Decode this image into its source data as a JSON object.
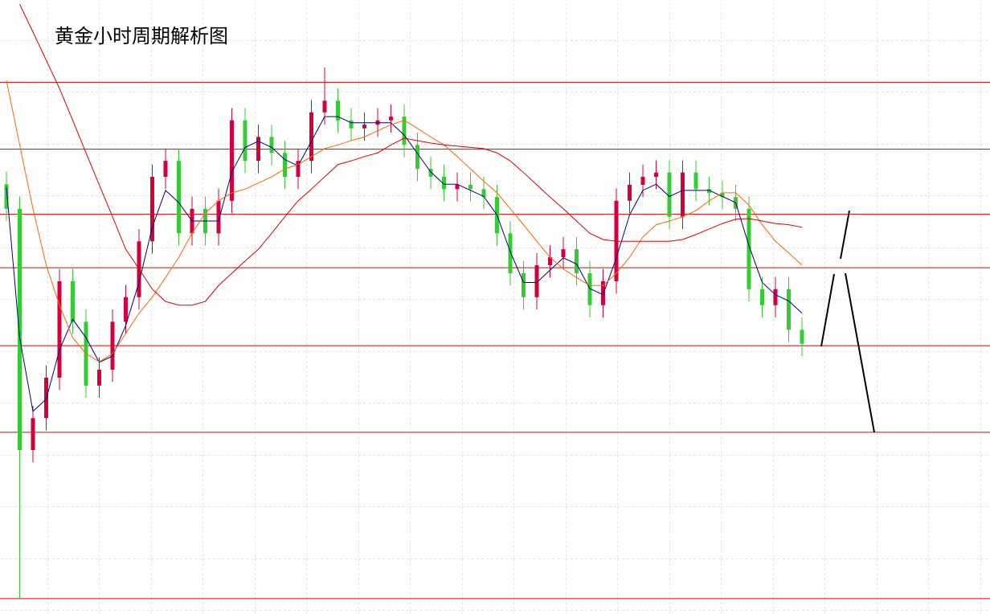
{
  "chart_data": {
    "type": "candlestick",
    "title": "黄金小时周期解析图",
    "ylim": [
      0,
      100
    ],
    "up_color": "#d4003b",
    "down_color": "#33cc33",
    "open": [
      70.0,
      66.0,
      26.7,
      31.9,
      38.5,
      54.2,
      47.6,
      37.2,
      39.8,
      47.6,
      51.6,
      60.7,
      71.2,
      73.8,
      62.0,
      66.0,
      62.0,
      67.3,
      80.4,
      73.8,
      77.7,
      75.1,
      71.2,
      73.8,
      81.7,
      83.6,
      80.4,
      79.1,
      79.7,
      80.4,
      81.0,
      76.4,
      72.5,
      71.2,
      69.2,
      69.9,
      69.2,
      67.9,
      62.0,
      55.5,
      51.6,
      56.8,
      58.1,
      59.4,
      55.5,
      50.3,
      54.2,
      67.3,
      69.9,
      71.2,
      71.9,
      64.7,
      71.9,
      69.2,
      68.6,
      67.9,
      66.0,
      52.9,
      50.3,
      52.9,
      46.3
    ],
    "high": [
      72.0,
      68.0,
      33.9,
      40.5,
      56.2,
      56.2,
      49.6,
      41.8,
      49.6,
      53.6,
      62.7,
      73.2,
      75.8,
      75.8,
      68.0,
      68.0,
      69.3,
      82.4,
      82.4,
      79.7,
      79.7,
      77.1,
      75.8,
      83.7,
      89.0,
      85.6,
      82.4,
      81.7,
      82.4,
      83.0,
      83.0,
      78.4,
      74.5,
      73.2,
      71.9,
      71.9,
      71.2,
      69.9,
      64.0,
      57.5,
      58.8,
      60.1,
      61.4,
      61.4,
      57.5,
      56.2,
      69.3,
      71.9,
      73.2,
      73.9,
      73.9,
      73.9,
      73.9,
      71.2,
      70.6,
      69.9,
      68.0,
      54.9,
      54.9,
      54.9,
      48.3
    ],
    "low": [
      64.0,
      2.5,
      24.7,
      29.9,
      36.5,
      45.6,
      35.2,
      35.2,
      37.8,
      45.6,
      49.6,
      58.7,
      69.2,
      60.0,
      60.0,
      60.0,
      60.0,
      65.3,
      71.8,
      71.8,
      73.1,
      69.2,
      69.2,
      71.8,
      79.7,
      78.4,
      77.1,
      77.1,
      77.7,
      78.4,
      74.4,
      70.5,
      69.2,
      67.2,
      67.2,
      67.2,
      65.9,
      60.0,
      53.5,
      49.6,
      49.6,
      54.8,
      56.1,
      53.5,
      48.3,
      48.3,
      52.2,
      65.3,
      67.9,
      69.2,
      62.7,
      62.7,
      67.2,
      66.6,
      65.9,
      64.0,
      50.9,
      48.3,
      48.3,
      44.3,
      42.0
    ],
    "close": [
      66.0,
      26.7,
      31.9,
      38.5,
      54.2,
      47.6,
      37.2,
      39.8,
      47.6,
      51.6,
      60.7,
      71.2,
      73.8,
      62.0,
      66.0,
      62.0,
      67.3,
      80.4,
      73.8,
      77.7,
      75.1,
      71.2,
      73.8,
      81.7,
      83.6,
      80.4,
      79.1,
      79.7,
      80.4,
      81.0,
      76.4,
      72.5,
      71.2,
      69.2,
      69.9,
      69.2,
      67.9,
      62.0,
      55.5,
      51.6,
      56.8,
      58.1,
      59.4,
      55.5,
      50.3,
      54.2,
      67.3,
      69.9,
      71.2,
      71.9,
      64.7,
      71.9,
      69.2,
      68.6,
      67.9,
      66.0,
      52.9,
      50.3,
      52.9,
      46.3,
      44.0
    ],
    "series": [
      {
        "color": "#000080",
        "values": [
          69.5,
          45,
          33,
          35,
          43,
          48,
          45,
          41,
          42,
          47,
          54,
          63,
          69,
          67,
          64,
          64,
          64,
          72,
          76,
          77,
          76,
          74,
          73,
          77,
          81,
          81,
          80,
          80,
          80,
          80,
          78,
          75,
          72,
          70,
          70,
          69,
          68,
          65,
          59,
          54,
          54,
          56,
          58,
          57,
          53,
          52,
          58,
          65,
          69,
          70,
          68,
          69,
          69,
          69,
          68,
          67,
          60,
          54,
          52,
          51,
          49
        ]
      },
      {
        "color": "#ff6600",
        "values": [
          86.9,
          76.4,
          66.0,
          56.8,
          50.3,
          45.0,
          42.4,
          41.1,
          42.4,
          45.7,
          49.0,
          51.6,
          54.8,
          58.1,
          62.0,
          65.3,
          67.3,
          68.6,
          69.2,
          70.2,
          71.2,
          72.5,
          73.2,
          74.5,
          75.8,
          76.4,
          77.1,
          77.7,
          78.7,
          79.7,
          80.4,
          79.1,
          77.7,
          76.4,
          74.5,
          72.5,
          70.5,
          68.6,
          66.0,
          63.4,
          60.7,
          58.1,
          56.2,
          54.8,
          53.5,
          53.5,
          55.5,
          58.1,
          61.4,
          63.4,
          64.0,
          64.7,
          65.7,
          67.3,
          68.6,
          68.6,
          66.6,
          63.4,
          60.7,
          58.8,
          56.8
        ]
      },
      {
        "color": "#dd0000",
        "values": [
          null,
          99.3,
          94.8,
          90.2,
          85.6,
          80.4,
          75.1,
          69.9,
          64.7,
          59.4,
          56.2,
          52.9,
          50.9,
          50.3,
          50.3,
          50.9,
          53.5,
          55.5,
          57.5,
          59.4,
          62.0,
          64.7,
          67.3,
          69.2,
          71.2,
          73.2,
          73.8,
          74.5,
          75.1,
          76.4,
          77.5,
          77.1,
          76.7,
          76.4,
          76.2,
          76.0,
          75.8,
          75.1,
          73.8,
          71.9,
          69.9,
          67.9,
          66.0,
          64.0,
          62.0,
          61.0,
          60.7,
          60.7,
          60.7,
          60.7,
          60.7,
          61.0,
          61.8,
          62.7,
          63.6,
          64.3,
          64.4,
          64.0,
          63.6,
          63.4,
          63.0
        ]
      }
    ],
    "levels": [
      86.6,
      75.7,
      65.1,
      56.4,
      43.7,
      29.6,
      2.5
    ],
    "level_color": "#dd0000",
    "grid": true
  }
}
